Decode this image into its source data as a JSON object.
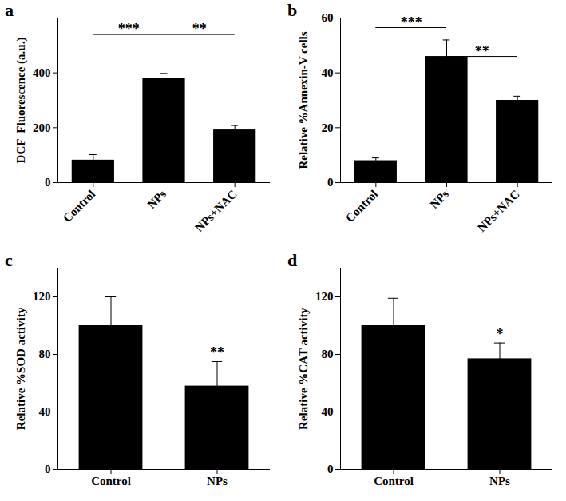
{
  "chart_data": [
    {
      "type": "bar",
      "title": "a",
      "y_label": "DCF  Fluorescence (a.u.)",
      "categories": [
        "Control",
        "NPs",
        "NPs+NAC"
      ],
      "values": [
        82,
        380,
        192
      ],
      "errors": [
        20,
        18,
        16
      ],
      "color": "#000000",
      "ylim": [
        0,
        600
      ],
      "yticks": [
        0,
        200,
        400
      ],
      "significance": [
        {
          "from": "Control",
          "to": "NPs",
          "y": 540,
          "label": "***"
        },
        {
          "from": "NPs",
          "to": "NPs+NAC",
          "y": 540,
          "label": "**"
        }
      ]
    },
    {
      "type": "bar",
      "title": "b",
      "y_label": "Relative %Annexin-V cells",
      "categories": [
        "Control",
        "NPs",
        "NPs+NAC"
      ],
      "values": [
        8,
        46,
        30
      ],
      "errors": [
        1,
        6,
        1.5
      ],
      "color": "#000000",
      "ylim": [
        0,
        60
      ],
      "yticks": [
        0,
        20,
        40,
        60
      ],
      "significance": [
        {
          "from": "Control",
          "to": "NPs",
          "y": 56.5,
          "label": "***"
        },
        {
          "from": "NPs",
          "to": "NPs+NAC",
          "y": 46,
          "label": "**"
        }
      ]
    },
    {
      "type": "bar",
      "title": "c",
      "y_label": "Relative %SOD activity",
      "categories": [
        "Control",
        "NPs"
      ],
      "values": [
        100,
        58
      ],
      "errors": [
        20,
        17
      ],
      "color": "#000000",
      "ylim": [
        0,
        140
      ],
      "yticks": [
        0,
        40,
        80,
        120
      ],
      "annotations": [
        {
          "category": "NPs",
          "y": 77,
          "label": "**"
        }
      ]
    },
    {
      "type": "bar",
      "title": "d",
      "y_label": "Relative %CAT activity",
      "categories": [
        "Control",
        "NPs"
      ],
      "values": [
        100,
        77
      ],
      "errors": [
        19,
        11
      ],
      "color": "#000000",
      "ylim": [
        0,
        140
      ],
      "yticks": [
        0,
        40,
        80,
        120
      ],
      "annotations": [
        {
          "category": "NPs",
          "y": 90,
          "label": "*"
        }
      ]
    }
  ]
}
